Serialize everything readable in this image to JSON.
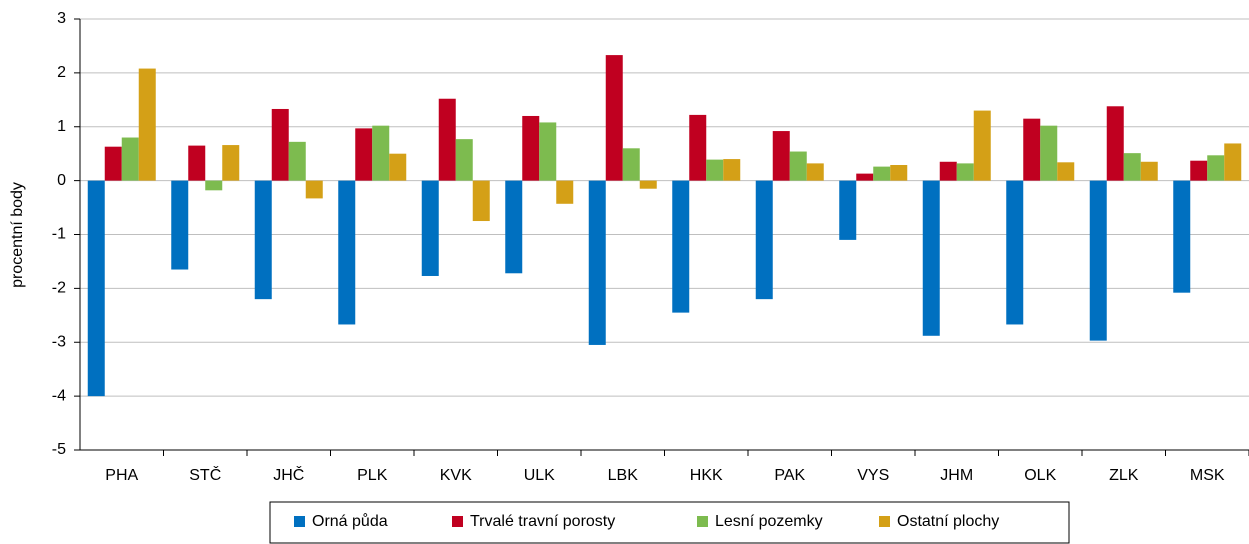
{
  "chart_data": {
    "type": "bar",
    "y_label": "procentní body",
    "categories": [
      "PHA",
      "STČ",
      "JHČ",
      "PLK",
      "KVK",
      "ULK",
      "LBK",
      "HKK",
      "PAK",
      "VYS",
      "JHM",
      "OLK",
      "ZLK",
      "MSK"
    ],
    "series": [
      {
        "name": "Orná půda",
        "color": "#0070c0",
        "values": [
          -4.0,
          -1.65,
          -2.2,
          -2.67,
          -1.77,
          -1.72,
          -3.05,
          -2.45,
          -2.2,
          -1.1,
          -2.88,
          -2.67,
          -2.97,
          -2.08
        ]
      },
      {
        "name": "Trvalé travní porosty",
        "color": "#c00020",
        "values": [
          0.63,
          0.65,
          1.33,
          0.97,
          1.52,
          1.2,
          2.33,
          1.22,
          0.92,
          0.13,
          0.35,
          1.15,
          1.38,
          0.37
        ]
      },
      {
        "name": "Lesní pozemky",
        "color": "#7dbb4f",
        "values": [
          0.8,
          -0.18,
          0.72,
          1.02,
          0.77,
          1.08,
          0.6,
          0.39,
          0.54,
          0.26,
          0.32,
          1.02,
          0.51,
          0.47
        ]
      },
      {
        "name": "Ostatní plochy",
        "color": "#d4a017",
        "values": [
          2.08,
          0.66,
          -0.33,
          0.5,
          -0.75,
          -0.43,
          -0.15,
          0.4,
          0.32,
          0.29,
          1.3,
          0.34,
          0.35,
          0.69
        ]
      }
    ],
    "ylim": [
      -5,
      3
    ],
    "yticks": [
      -5,
      -4,
      -3,
      -2,
      -1,
      0,
      1,
      2,
      3
    ],
    "grid": true,
    "legend": "bottom"
  }
}
